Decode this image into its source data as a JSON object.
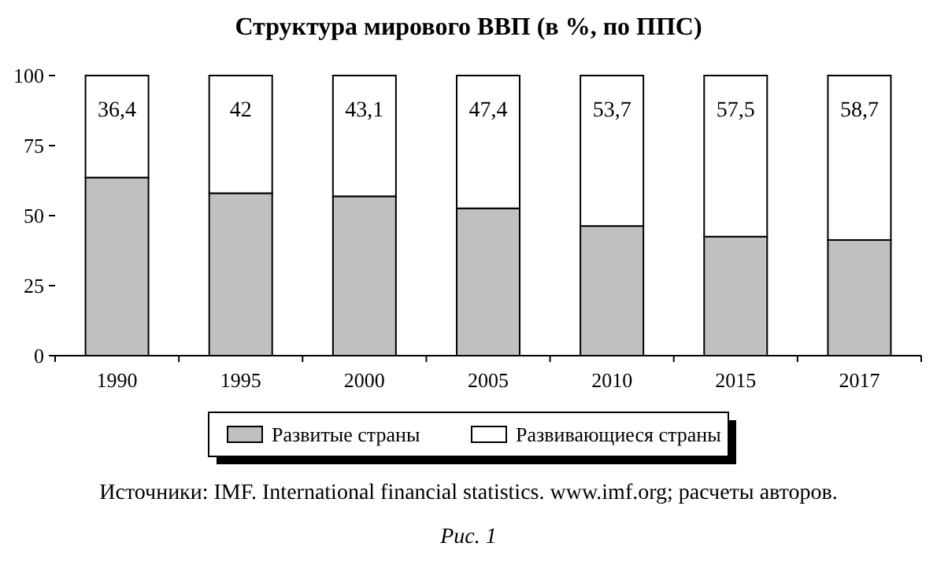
{
  "chart_data": {
    "type": "bar",
    "title": "Структура мирового ВВП (в %, по ППС)",
    "categories": [
      "1990",
      "1995",
      "2000",
      "2005",
      "2010",
      "2015",
      "2017"
    ],
    "series": [
      {
        "name": "Развитые страны",
        "color": "#c0c0c0",
        "values": [
          63.6,
          58,
          56.9,
          52.6,
          46.3,
          42.5,
          41.3
        ]
      },
      {
        "name": "Развивающиеся страны",
        "color": "#ffffff",
        "values": [
          36.4,
          42,
          43.1,
          47.4,
          53.7,
          57.5,
          58.7
        ],
        "value_labels": [
          "36,4",
          "42",
          "43,1",
          "47,4",
          "53,7",
          "57,5",
          "58,7"
        ]
      }
    ],
    "stacked": true,
    "ylim": [
      0,
      100
    ],
    "yticks": [
      0,
      25,
      50,
      75,
      100
    ],
    "grid": false,
    "legend": "bottom",
    "annotations": [
      "Источники: IMF. International financial statistics. www.imf.org; расчеты авторов.",
      "Рис. 1"
    ]
  }
}
